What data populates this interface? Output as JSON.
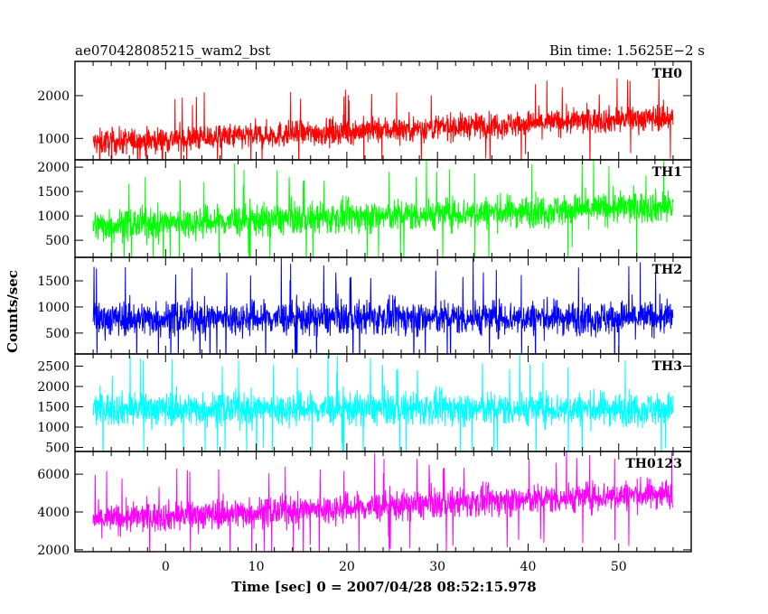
{
  "header": {
    "title": "ae070428085215_wam2_bst",
    "bin_time": "Bin time: 1.5625E−2 s"
  },
  "chart_data": {
    "type": "line",
    "xlabel": "Time [sec] 0 = 2007/04/28 08:52:15.978",
    "ylabel": "Counts/sec",
    "xlim": [
      -10,
      58
    ],
    "x_range": [
      -8,
      56
    ],
    "xticks": [
      0,
      10,
      20,
      30,
      40,
      50
    ],
    "panels": [
      {
        "name": "TH0",
        "color": "#ff0000",
        "ylim": [
          500,
          2800
        ],
        "yticks": [
          1000,
          2000
        ],
        "trend_start": 900,
        "trend_end": 1500,
        "spread": 520
      },
      {
        "name": "TH1",
        "color": "#00ff00",
        "ylim": [
          150,
          2150
        ],
        "yticks": [
          500,
          1000,
          1500,
          2000
        ],
        "trend_start": 800,
        "trend_end": 1200,
        "spread": 560
      },
      {
        "name": "TH2",
        "color": "#0000ff",
        "ylim": [
          100,
          1950
        ],
        "yticks": [
          500,
          1000,
          1500
        ],
        "trend_start": 780,
        "trend_end": 800,
        "spread": 560
      },
      {
        "name": "TH3",
        "color": "#00ffff",
        "ylim": [
          400,
          2800
        ],
        "yticks": [
          500,
          1000,
          1500,
          2000,
          2500
        ],
        "trend_start": 1450,
        "trend_end": 1450,
        "spread": 700
      },
      {
        "name": "TH0123",
        "color": "#ff00ff",
        "ylim": [
          1900,
          7200
        ],
        "yticks": [
          2000,
          4000,
          6000
        ],
        "trend_start": 3600,
        "trend_end": 5000,
        "spread": 1350
      }
    ]
  }
}
